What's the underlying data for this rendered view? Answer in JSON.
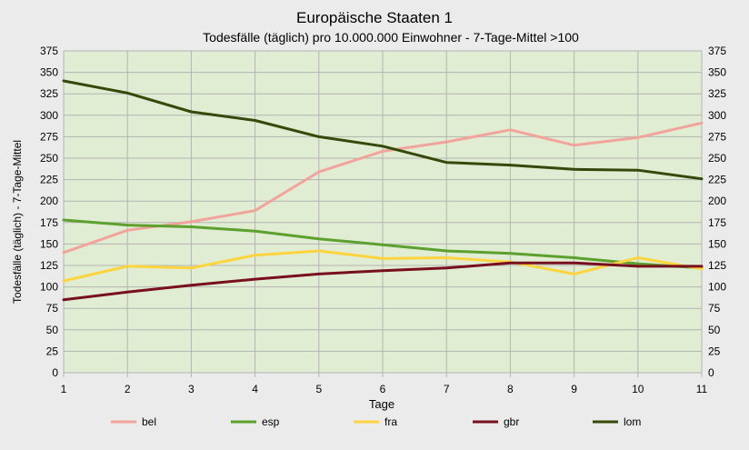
{
  "chart_data": {
    "type": "line",
    "title": "Europäische Staaten 1",
    "subtitle": "Todesfälle (täglich) pro 10.000.000 Einwohner - 7-Tage-Mittel >100",
    "xlabel": "Tage",
    "ylabel": "Todesfälle (täglich) - 7-Tage-Mittel",
    "x": [
      1,
      2,
      3,
      4,
      5,
      6,
      7,
      8,
      9,
      10,
      11
    ],
    "ylim": [
      0,
      375
    ],
    "yticks": [
      0,
      25,
      50,
      75,
      100,
      125,
      150,
      175,
      200,
      225,
      250,
      275,
      300,
      325,
      350,
      375
    ],
    "secondary_y_axis": true,
    "grid": "horizontal and vertical",
    "legend_position": "bottom",
    "plot_background": "#e1edd2",
    "series": [
      {
        "name": "bel",
        "color": "#f2a39c",
        "values": [
          140,
          166,
          176,
          189,
          234,
          258,
          269,
          283,
          265,
          274,
          291
        ]
      },
      {
        "name": "esp",
        "color": "#5ca02d",
        "values": [
          178,
          172,
          170,
          165,
          156,
          149,
          142,
          139,
          134,
          127,
          122
        ]
      },
      {
        "name": "fra",
        "color": "#fcd43f",
        "values": [
          107,
          124,
          122,
          137,
          142,
          133,
          134,
          129,
          115,
          134,
          121
        ]
      },
      {
        "name": "gbr",
        "color": "#780f1f",
        "values": [
          85,
          94,
          102,
          109,
          115,
          119,
          122,
          128,
          128,
          124,
          124
        ]
      },
      {
        "name": "lom",
        "color": "#354a0a",
        "values": [
          340,
          326,
          304,
          294,
          275,
          264,
          245,
          242,
          237,
          236,
          226
        ]
      }
    ]
  }
}
